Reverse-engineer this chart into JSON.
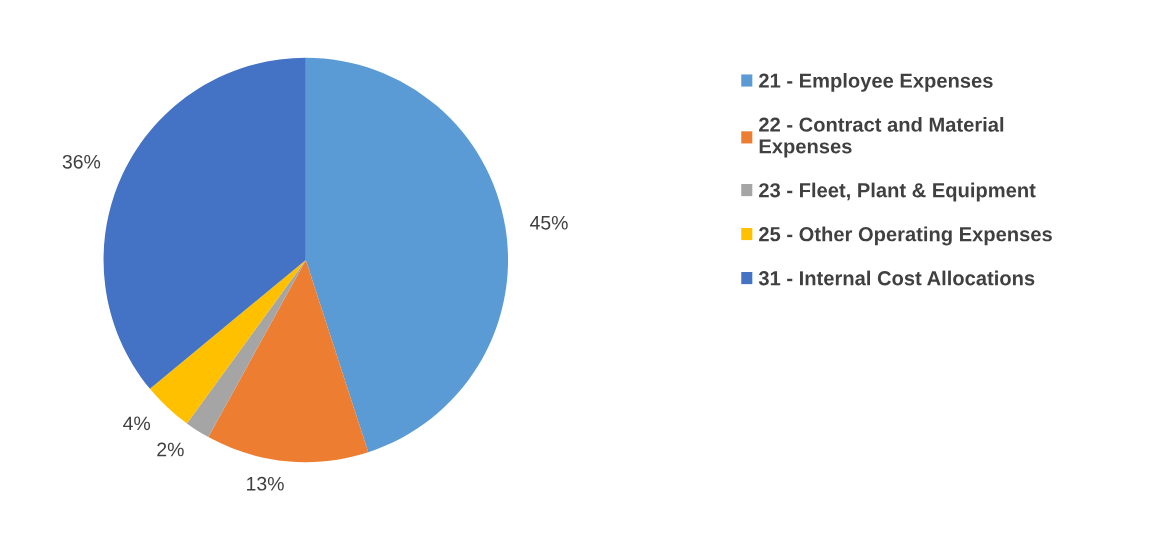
{
  "chart_data": {
    "type": "pie",
    "categories": [
      "21 - Employee Expenses",
      "22 - Contract and Material\nExpenses",
      "23 - Fleet, Plant & Equipment",
      "25 - Other Operating Expenses",
      "31 - Internal Cost Allocations"
    ],
    "values": [
      45,
      13,
      2,
      4,
      36
    ],
    "colors": [
      "#5b9bd5",
      "#ed7d31",
      "#a5a5a5",
      "#ffc000",
      "#4472c4"
    ],
    "value_labels": [
      "45%",
      "13%",
      "2%",
      "4%",
      "36%"
    ],
    "legend": "right"
  }
}
